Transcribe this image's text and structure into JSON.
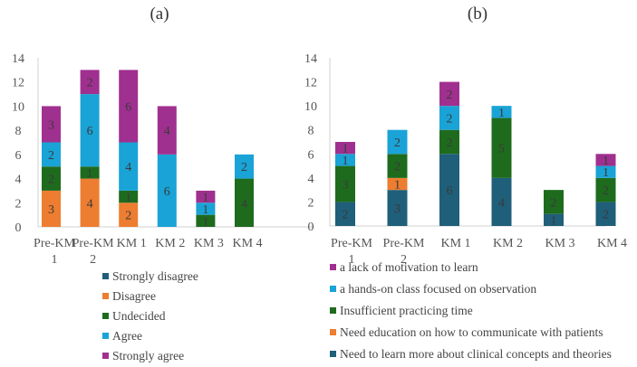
{
  "chart_data": [
    {
      "type": "bar",
      "stacked": true,
      "title": "(a)",
      "xlabel": "",
      "ylabel": "",
      "ylim": [
        0,
        14
      ],
      "yticks": [
        0,
        2,
        4,
        6,
        8,
        10,
        12,
        14
      ],
      "grid": false,
      "legend_position": "bottom",
      "categories": [
        {
          "line1": "Pre-KM",
          "line2": "1"
        },
        {
          "line1": "Pre-KM",
          "line2": "2"
        },
        {
          "line1": "KM 1",
          "line2": ""
        },
        {
          "line1": "KM 2",
          "line2": ""
        },
        {
          "line1": "KM 3",
          "line2": ""
        },
        {
          "line1": "KM 4",
          "line2": ""
        }
      ],
      "series": [
        {
          "name": "Strongly disagree",
          "color": "#1f5f7a",
          "values": [
            0,
            0,
            0,
            0,
            0,
            0
          ]
        },
        {
          "name": "Disagree",
          "color": "#ed7d31",
          "values": [
            3,
            4,
            2,
            0,
            0,
            0
          ]
        },
        {
          "name": "Undecided",
          "color": "#1e6b1e",
          "values": [
            2,
            1,
            1,
            0,
            1,
            4
          ]
        },
        {
          "name": "Agree",
          "color": "#1aa3d6",
          "values": [
            2,
            6,
            4,
            6,
            1,
            2
          ]
        },
        {
          "name": "Strongly agree",
          "color": "#a0308f",
          "values": [
            3,
            2,
            6,
            4,
            1,
            0
          ]
        }
      ]
    },
    {
      "type": "bar",
      "stacked": true,
      "title": "(b)",
      "xlabel": "",
      "ylabel": "",
      "ylim": [
        0,
        14
      ],
      "yticks": [
        0,
        2,
        4,
        6,
        8,
        10,
        12,
        14
      ],
      "grid": false,
      "legend_position": "bottom",
      "legend_reversed": true,
      "categories": [
        {
          "line1": "Pre-KM",
          "line2": "1"
        },
        {
          "line1": "Pre-KM",
          "line2": "2"
        },
        {
          "line1": "KM 1",
          "line2": ""
        },
        {
          "line1": "KM 2",
          "line2": ""
        },
        {
          "line1": "KM 3",
          "line2": ""
        },
        {
          "line1": "KM 4",
          "line2": ""
        }
      ],
      "series": [
        {
          "name": "Need to learn more about clinical concepts and theories",
          "color": "#1f5f7a",
          "values": [
            2,
            3,
            6,
            4,
            1,
            2
          ]
        },
        {
          "name": "Need education on how to communicate with patients",
          "color": "#ed7d31",
          "values": [
            0,
            1,
            0,
            0,
            0,
            0
          ]
        },
        {
          "name": "Insufficient practicing time",
          "color": "#1e6b1e",
          "values": [
            3,
            2,
            2,
            5,
            2,
            2
          ]
        },
        {
          "name": "a hands-on class focused on observation",
          "color": "#1aa3d6",
          "values": [
            1,
            2,
            2,
            1,
            0,
            1
          ]
        },
        {
          "name": "a lack of motivation to learn",
          "color": "#a0308f",
          "values": [
            1,
            0,
            2,
            0,
            0,
            1
          ]
        }
      ]
    }
  ]
}
